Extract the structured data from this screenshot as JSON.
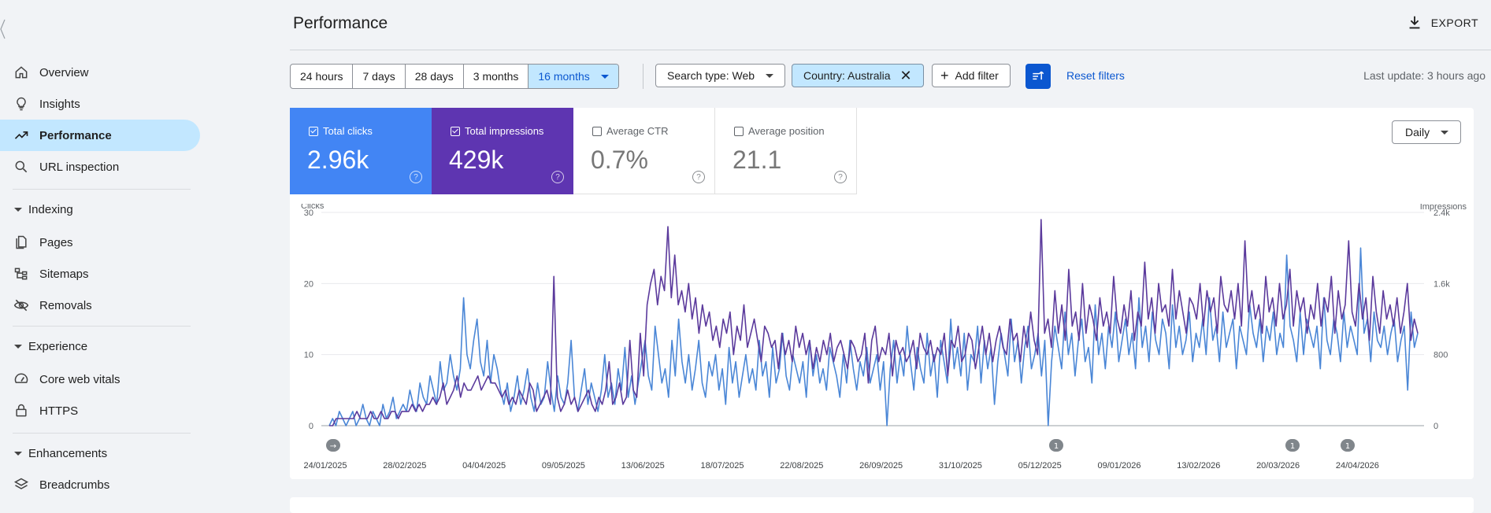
{
  "header": {
    "title": "Performance",
    "export_label": "EXPORT"
  },
  "sidebar": {
    "items": [
      {
        "label": "Overview",
        "icon": "home-icon"
      },
      {
        "label": "Insights",
        "icon": "lightbulb-icon"
      },
      {
        "label": "Performance",
        "icon": "trending-up-icon",
        "active": true
      },
      {
        "label": "URL inspection",
        "icon": "search-icon"
      },
      {
        "label": "Pages",
        "icon": "pages-icon"
      },
      {
        "label": "Sitemaps",
        "icon": "sitemap-icon"
      },
      {
        "label": "Removals",
        "icon": "eye-off-icon"
      },
      {
        "label": "Core web vitals",
        "icon": "gauge-icon"
      },
      {
        "label": "HTTPS",
        "icon": "lock-icon"
      },
      {
        "label": "Breadcrumbs",
        "icon": "layers-icon"
      }
    ],
    "sections": [
      "Indexing",
      "Experience",
      "Enhancements"
    ]
  },
  "filters": {
    "ranges": [
      "24 hours",
      "7 days",
      "28 days",
      "3 months",
      "16 months"
    ],
    "selected_range": "16 months",
    "search_type": "Search type: Web",
    "country": "Country: Australia",
    "add_filter": "Add filter",
    "reset": "Reset filters",
    "last_update": "Last update: 3 hours ago"
  },
  "metrics": [
    {
      "label": "Total clicks",
      "value": "2.96k",
      "checked": true
    },
    {
      "label": "Total impressions",
      "value": "429k",
      "checked": true
    },
    {
      "label": "Average CTR",
      "value": "0.7%",
      "checked": false
    },
    {
      "label": "Average position",
      "value": "21.1",
      "checked": false
    }
  ],
  "granularity": "Daily",
  "colors": {
    "clicks": "#4a86d6",
    "impressions": "#5b3a9c",
    "accent": "#0b57d0",
    "selected_bg": "#c2e7ff"
  },
  "chart_data": {
    "type": "line",
    "left_axis_label": "Clicks",
    "right_axis_label": "Impressions",
    "left_ticks": [
      "30",
      "20",
      "10",
      "0"
    ],
    "right_ticks": [
      "2.4k",
      "1.6k",
      "800",
      "0"
    ],
    "ylim_left": [
      0,
      30
    ],
    "ylim_right": [
      0,
      2400
    ],
    "x_tick_labels": [
      "24/01/2025",
      "28/02/2025",
      "04/04/2025",
      "09/05/2025",
      "13/06/2025",
      "18/07/2025",
      "22/08/2025",
      "26/09/2025",
      "31/10/2025",
      "05/12/2025",
      "09/01/2026",
      "13/02/2026",
      "20/03/2026",
      "24/04/2026"
    ],
    "annotations": [
      {
        "date": "24/01/2025",
        "label": "→"
      },
      {
        "date": "05/12/2025",
        "label": "1"
      },
      {
        "date": "20/03/2026",
        "label": "1"
      },
      {
        "date": "03/04/2026",
        "label": "1"
      }
    ],
    "series": [
      {
        "name": "Clicks",
        "axis": "left",
        "values": [
          0,
          1,
          0,
          2,
          1,
          0,
          1,
          2,
          0,
          1,
          3,
          1,
          0,
          2,
          1,
          0,
          3,
          1,
          2,
          4,
          1,
          2,
          3,
          2,
          5,
          3,
          2,
          6,
          4,
          3,
          7,
          5,
          3,
          9,
          5,
          6,
          10,
          7,
          5,
          8,
          18,
          10,
          8,
          12,
          15,
          9,
          7,
          12,
          6,
          10,
          8,
          5,
          3,
          6,
          2,
          4,
          7,
          3,
          5,
          8,
          4,
          2,
          6,
          3,
          4,
          9,
          5,
          2,
          7,
          4,
          3,
          6,
          12,
          4,
          2,
          5,
          8,
          3,
          6,
          4,
          2,
          5,
          10,
          4,
          6,
          3,
          8,
          5,
          11,
          4,
          7,
          3,
          6,
          9,
          12,
          7,
          5,
          14,
          10,
          6,
          8,
          4,
          12,
          7,
          15,
          9,
          6,
          10,
          5,
          8,
          12,
          6,
          4,
          9,
          7,
          10,
          5,
          8,
          3,
          11,
          6,
          9,
          4,
          7,
          10,
          6,
          8,
          5,
          12,
          7,
          9,
          4,
          11,
          6,
          8,
          13,
          7,
          5,
          10,
          8,
          6,
          9,
          4,
          12,
          7,
          10,
          6,
          8,
          5,
          11,
          9,
          7,
          4,
          10,
          6,
          12,
          8,
          5,
          9,
          7,
          11,
          6,
          8,
          10,
          5,
          9,
          0,
          8,
          12,
          6,
          10,
          7,
          14,
          9,
          5,
          11,
          8,
          6,
          13,
          7,
          10,
          4,
          12,
          9,
          6,
          15,
          8,
          11,
          7,
          13,
          5,
          10,
          9,
          14,
          6,
          12,
          8,
          11,
          3,
          9,
          13,
          10,
          7,
          15,
          9,
          12,
          6,
          11,
          14,
          8,
          10,
          13,
          7,
          12,
          0,
          9,
          14,
          11,
          8,
          16,
          10,
          13,
          7,
          12,
          15,
          9,
          11,
          6,
          17,
          10,
          13,
          8,
          14,
          11,
          16,
          9,
          12,
          15,
          10,
          13,
          8,
          18,
          11,
          14,
          9,
          16,
          12,
          10,
          15,
          13,
          8,
          17,
          11,
          14,
          10,
          12,
          16,
          9,
          13,
          11,
          15,
          10,
          18,
          12,
          14,
          9,
          16,
          11,
          13,
          15,
          8,
          14,
          12,
          10,
          17,
          13,
          11,
          15,
          9,
          14,
          12,
          16,
          10,
          13,
          11,
          24,
          14,
          12,
          9,
          16,
          10,
          15,
          13,
          11,
          14,
          8,
          18,
          12,
          10,
          15,
          13,
          9,
          16,
          11,
          14,
          12,
          10,
          25,
          13,
          15,
          9,
          16,
          12,
          11,
          14,
          10,
          13,
          15,
          9,
          12,
          14,
          5,
          16,
          11,
          13
        ]
      },
      {
        "name": "Impressions",
        "axis": "left",
        "values": [
          0,
          0,
          1,
          1,
          1,
          1,
          1,
          1,
          2,
          1,
          1,
          1,
          2,
          1,
          1,
          2,
          1,
          1,
          2,
          2,
          1,
          2,
          2,
          2,
          3,
          2,
          3,
          2,
          3,
          3,
          4,
          3,
          4,
          6,
          3,
          4,
          5,
          7,
          4,
          6,
          5,
          5,
          6,
          7,
          5,
          6,
          7,
          6,
          6,
          5,
          4,
          5,
          3,
          4,
          3,
          5,
          4,
          3,
          6,
          5,
          2,
          3,
          4,
          5,
          3,
          21,
          4,
          2,
          3,
          5,
          3,
          4,
          2,
          3,
          4,
          5,
          3,
          2,
          4,
          3,
          5,
          9,
          3,
          4,
          6,
          3,
          4,
          12,
          5,
          4,
          13,
          7,
          17,
          20,
          22,
          17,
          21,
          19,
          28,
          18,
          24,
          17,
          19,
          16,
          20,
          15,
          18,
          13,
          17,
          14,
          16,
          12,
          14,
          11,
          15,
          13,
          16,
          10,
          14,
          12,
          17,
          11,
          13,
          15,
          12,
          9,
          14,
          13,
          11,
          12,
          8,
          13,
          10,
          12,
          9,
          14,
          11,
          13,
          10,
          12,
          8,
          11,
          9,
          12,
          10,
          13,
          9,
          11,
          12,
          10,
          8,
          12,
          11,
          9,
          10,
          13,
          6,
          12,
          14,
          9,
          11,
          10,
          13,
          7,
          12,
          10,
          11,
          9,
          10,
          12,
          8,
          13,
          11,
          10,
          12,
          9,
          11,
          10,
          13,
          7,
          12,
          11,
          14,
          9,
          10,
          13,
          12,
          8,
          11,
          14,
          10,
          13,
          9,
          12,
          14,
          11,
          10,
          15,
          12,
          13,
          9,
          14,
          11,
          16,
          12,
          10,
          29,
          13,
          15,
          11,
          19,
          13,
          17,
          12,
          22,
          14,
          16,
          12,
          20,
          13,
          17,
          15,
          12,
          18,
          14,
          16,
          13,
          21,
          15,
          13,
          17,
          14,
          19,
          12,
          16,
          14,
          23,
          15,
          18,
          13,
          20,
          16,
          17,
          14,
          22,
          15,
          19,
          16,
          13,
          18,
          17,
          15,
          20,
          14,
          19,
          16,
          18,
          13,
          21,
          17,
          16,
          19,
          15,
          20,
          14,
          26,
          16,
          19,
          15,
          17,
          13,
          21,
          16,
          18,
          14,
          20,
          15,
          17,
          22,
          14,
          19,
          16,
          18,
          13,
          17,
          15,
          20,
          14,
          18,
          16,
          21,
          13,
          19,
          15,
          17,
          26,
          16,
          14,
          20,
          15,
          18,
          12,
          21,
          16,
          13,
          19,
          15,
          17,
          14,
          18,
          13,
          16,
          20,
          12,
          15,
          13
        ]
      }
    ]
  }
}
